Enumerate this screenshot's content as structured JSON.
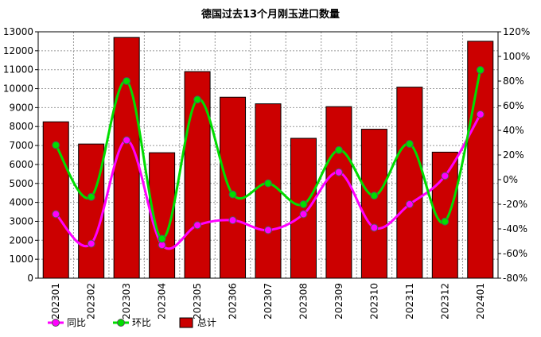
{
  "chart_data": {
    "type": "bar",
    "title": "德国过去13个月刚玉进口数量",
    "categories": [
      "202301",
      "202302",
      "202303",
      "202304",
      "202305",
      "202306",
      "202307",
      "202308",
      "202309",
      "202310",
      "202311",
      "202312",
      "202401"
    ],
    "left_axis": {
      "ylim": [
        0,
        13000
      ],
      "ticks": [
        "0",
        "1000",
        "2000",
        "3000",
        "4000",
        "5000",
        "6000",
        "7000",
        "8000",
        "9000",
        "10000",
        "11000",
        "12000",
        "13000"
      ]
    },
    "right_axis": {
      "ylim": [
        -80,
        120
      ],
      "unit": "%",
      "ticks": [
        "-80%",
        "-60%",
        "-40%",
        "-20%",
        "0%",
        "20%",
        "40%",
        "60%",
        "80%",
        "100%",
        "120%"
      ]
    },
    "grid": true,
    "legend_position": "bottom-left",
    "series": [
      {
        "name": "总计",
        "type": "bar",
        "axis": "left",
        "color": "#cc0000",
        "values": [
          8250,
          7080,
          12700,
          6620,
          10900,
          9550,
          9200,
          7380,
          9050,
          7860,
          10080,
          6650,
          12500
        ]
      },
      {
        "name": "同比",
        "type": "line",
        "axis": "right",
        "color": "#ff00ff",
        "values": [
          -28,
          -52,
          32,
          -53,
          -37,
          -33,
          -41,
          -28,
          6,
          -39,
          -20,
          3,
          53
        ]
      },
      {
        "name": "环比",
        "type": "line",
        "axis": "right",
        "color": "#00dd00",
        "values": [
          28,
          -14,
          80,
          -48,
          65,
          -12,
          -3,
          -20,
          24,
          -13,
          29,
          -34,
          89
        ]
      }
    ]
  }
}
